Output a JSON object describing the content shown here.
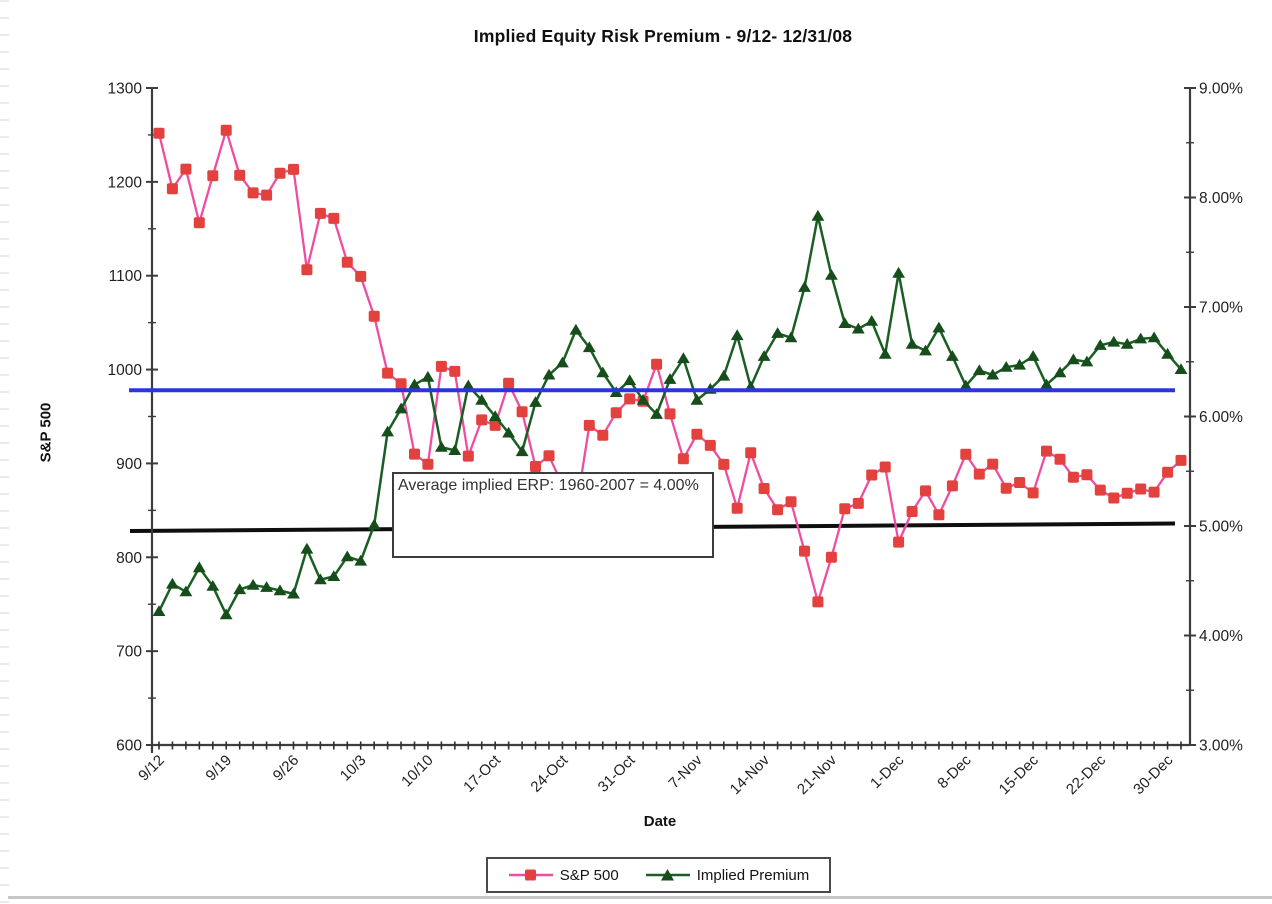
{
  "chart_data": {
    "type": "line",
    "title": "Implied Equity Risk Premium - 9/12- 12/31/08",
    "xlabel": "Date",
    "ylabel_left": "S&P 500",
    "left_axis": {
      "min": 600,
      "max": 1300,
      "major_tick": 100,
      "minor_tick": 50,
      "tick_labels": [
        "1300",
        "1200",
        "1100",
        "1000",
        "900",
        "800",
        "700",
        "600"
      ]
    },
    "right_axis": {
      "min": 3,
      "max": 9,
      "major_tick": 1,
      "minor_tick": 0.5,
      "tick_labels": [
        "9.00%",
        "8.00%",
        "7.00%",
        "6.00%",
        "5.00%",
        "4.00%",
        "3.00%"
      ]
    },
    "x_tick_labels": [
      "9/12",
      "9/19",
      "9/26",
      "10/3",
      "10/10",
      "17-Oct",
      "24-Oct",
      "31-Oct",
      "7-Nov",
      "14-Nov",
      "21-Nov",
      "1-Dec",
      "8-Dec",
      "15-Dec",
      "22-Dec",
      "30-Dec"
    ],
    "x_label_every": 5,
    "dates": [
      "9/12",
      "9/15",
      "9/16",
      "9/17",
      "9/18",
      "9/19",
      "9/22",
      "9/23",
      "9/24",
      "9/25",
      "9/26",
      "9/29",
      "9/30",
      "10/1",
      "10/2",
      "10/3",
      "10/6",
      "10/7",
      "10/8",
      "10/9",
      "10/10",
      "10/13",
      "10/14",
      "10/15",
      "10/16",
      "10/17",
      "10/20",
      "10/21",
      "10/22",
      "10/23",
      "10/24",
      "10/27",
      "10/28",
      "10/29",
      "10/30",
      "10/31",
      "11/3",
      "11/4",
      "11/5",
      "11/6",
      "11/7",
      "11/10",
      "11/11",
      "11/12",
      "11/13",
      "11/14",
      "11/17",
      "11/18",
      "11/19",
      "11/20",
      "11/21",
      "11/24",
      "11/25",
      "11/26",
      "11/28",
      "12/1",
      "12/2",
      "12/3",
      "12/4",
      "12/5",
      "12/8",
      "12/9",
      "12/10",
      "12/11",
      "12/12",
      "12/15",
      "12/16",
      "12/17",
      "12/18",
      "12/19",
      "12/22",
      "12/23",
      "12/24",
      "12/26",
      "12/29",
      "12/30",
      "12/31"
    ],
    "series": [
      {
        "name": "S&P 500",
        "axis": "left",
        "marker": "square",
        "line_color": "#ee4da2",
        "marker_color": "#e2413e",
        "values": [
          1251.7,
          1192.7,
          1213.6,
          1156.39,
          1206.51,
          1255.08,
          1207.09,
          1188.22,
          1185.87,
          1209.18,
          1213.27,
          1106.42,
          1166.36,
          1161.06,
          1114.28,
          1099.23,
          1056.89,
          996.23,
          984.94,
          909.92,
          899.22,
          1003.35,
          998.01,
          907.84,
          946.43,
          940.55,
          985.4,
          955.05,
          896.78,
          908.11,
          876.77,
          848.92,
          940.51,
          930.09,
          954.09,
          968.75,
          966.3,
          1005.75,
          952.77,
          904.88,
          930.99,
          919.21,
          898.95,
          852.3,
          911.29,
          873.29,
          850.75,
          859.12,
          806.58,
          752.44,
          800.03,
          851.81,
          857.39,
          887.68,
          896.24,
          816.21,
          848.81,
          870.74,
          845.22,
          876.07,
          909.7,
          888.67,
          899.24,
          873.59,
          879.73,
          868.57,
          913.18,
          904.42,
          885.28,
          887.88,
          871.63,
          863.16,
          868.15,
          872.8,
          869.42,
          890.64,
          903.25
        ]
      },
      {
        "name": "Implied Premium",
        "axis": "right",
        "marker": "triangle",
        "line_color": "#1b5e23",
        "marker_color": "#154d1b",
        "values": [
          4.22,
          4.47,
          4.4,
          4.62,
          4.45,
          4.19,
          4.42,
          4.46,
          4.44,
          4.41,
          4.38,
          4.79,
          4.51,
          4.54,
          4.72,
          4.68,
          5.01,
          5.86,
          6.07,
          6.29,
          6.36,
          5.72,
          5.69,
          6.28,
          6.15,
          6.0,
          5.85,
          5.68,
          6.13,
          6.38,
          6.49,
          6.79,
          6.63,
          6.4,
          6.22,
          6.33,
          6.15,
          6.02,
          6.34,
          6.53,
          6.15,
          6.25,
          6.37,
          6.74,
          6.27,
          6.55,
          6.76,
          6.72,
          7.18,
          7.83,
          7.29,
          6.85,
          6.8,
          6.87,
          6.57,
          7.31,
          6.66,
          6.6,
          6.81,
          6.55,
          6.28,
          6.42,
          6.38,
          6.45,
          6.47,
          6.55,
          6.29,
          6.4,
          6.52,
          6.5,
          6.65,
          6.68,
          6.66,
          6.71,
          6.72,
          6.57,
          6.43
        ]
      }
    ],
    "reference_lines": [
      {
        "name": "blue-reference-line",
        "color": "#2b35d8",
        "left_value": 978
      },
      {
        "name": "average-erp-line",
        "color": "#0e0e0e",
        "left_value_start": 828,
        "left_value_end": 836
      }
    ],
    "annotation": {
      "text": "Average implied ERP: 1960-2007 = 4.00%"
    },
    "legend": {
      "items": [
        "S&P 500",
        "Implied Premium"
      ]
    },
    "grid": "off",
    "legend_position": "bottom-center"
  }
}
